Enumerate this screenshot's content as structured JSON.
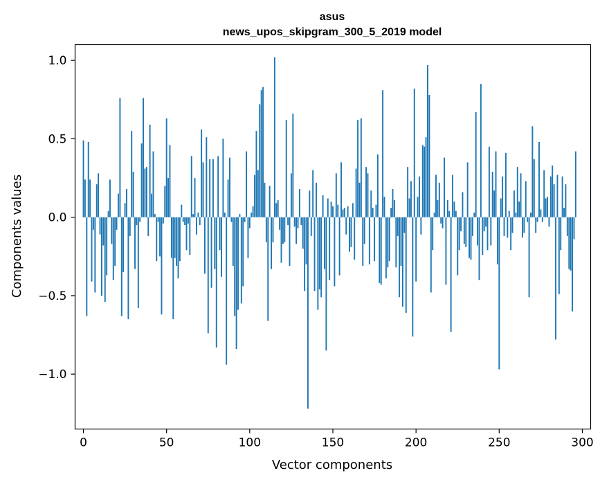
{
  "chart_data": {
    "type": "bar",
    "title": "asus",
    "subtitle": "news_upos_skipgram_300_5_2019 model",
    "xlabel": "Vector components",
    "ylabel": "Components values",
    "xlim": [
      -5,
      305
    ],
    "ylim": [
      -1.35,
      1.1
    ],
    "xticks": [
      0,
      50,
      100,
      150,
      200,
      250,
      300
    ],
    "xtick_labels": [
      "0",
      "50",
      "100",
      "150",
      "200",
      "250",
      "300"
    ],
    "yticks": [
      -1.0,
      -0.5,
      0.0,
      0.5,
      1.0
    ],
    "ytick_labels": [
      "−1.0",
      "−0.5",
      "0.0",
      "0.5",
      "1.0"
    ],
    "bar_color": "#1f77b4",
    "grid": false,
    "values": [
      0.49,
      0.24,
      -0.63,
      0.48,
      0.24,
      -0.41,
      -0.08,
      -0.48,
      0.21,
      0.28,
      -0.11,
      -0.5,
      -0.18,
      -0.54,
      -0.37,
      0.04,
      0.24,
      -0.17,
      -0.4,
      -0.31,
      -0.08,
      0.15,
      0.76,
      -0.63,
      -0.35,
      0.09,
      0.18,
      -0.65,
      -0.12,
      0.55,
      0.29,
      -0.33,
      -0.05,
      -0.58,
      -0.03,
      0.47,
      0.76,
      0.31,
      0.32,
      -0.12,
      0.59,
      0.15,
      0.42,
      0.02,
      -0.28,
      -0.03,
      -0.25,
      -0.62,
      -0.04,
      0.2,
      0.63,
      0.25,
      0.46,
      -0.26,
      -0.65,
      -0.26,
      -0.31,
      -0.39,
      -0.28,
      0.08,
      -0.03,
      -0.05,
      -0.21,
      -0.04,
      -0.24,
      0.39,
      0.02,
      0.25,
      -0.11,
      0.03,
      -0.05,
      0.56,
      0.35,
      -0.36,
      0.51,
      -0.74,
      0.37,
      -0.45,
      0.37,
      -0.33,
      -0.83,
      0.39,
      -0.21,
      -0.38,
      0.5,
      0.03,
      -0.94,
      0.24,
      0.38,
      -0.03,
      -0.31,
      -0.63,
      -0.84,
      -0.59,
      0.02,
      -0.55,
      -0.44,
      -0.03,
      0.42,
      -0.26,
      -0.07,
      0.03,
      0.07,
      0.27,
      0.55,
      0.3,
      0.72,
      0.81,
      0.83,
      0.22,
      -0.16,
      -0.66,
      0.2,
      -0.33,
      -0.16,
      1.02,
      0.09,
      0.11,
      -0.08,
      -0.29,
      -0.17,
      -0.16,
      0.62,
      -0.05,
      -0.31,
      0.28,
      0.66,
      -0.06,
      -0.17,
      -0.07,
      0.18,
      -0.05,
      -0.2,
      -0.47,
      -0.3,
      -1.22,
      0.17,
      -0.12,
      0.3,
      -0.47,
      0.22,
      -0.59,
      -0.46,
      -0.51,
      0.14,
      -0.33,
      -0.85,
      0.12,
      -0.4,
      0.1,
      0.07,
      -0.44,
      0.28,
      0.08,
      -0.37,
      0.35,
      0.05,
      0.06,
      -0.11,
      0.07,
      -0.22,
      -0.19,
      0.09,
      -0.27,
      0.31,
      0.62,
      0.22,
      0.63,
      -0.31,
      -0.17,
      0.32,
      0.28,
      -0.3,
      0.17,
      0.06,
      -0.28,
      0.08,
      0.4,
      -0.42,
      -0.43,
      0.81,
      0.13,
      -0.39,
      -0.32,
      -0.28,
      0.06,
      0.18,
      0.11,
      -0.32,
      -0.12,
      -0.51,
      -0.31,
      -0.57,
      -0.1,
      -0.61,
      0.32,
      0.12,
      0.23,
      -0.76,
      0.82,
      -0.41,
      0.13,
      0.26,
      -0.11,
      0.46,
      0.45,
      0.51,
      0.97,
      0.78,
      -0.48,
      -0.21,
      0.03,
      0.27,
      0.11,
      0.22,
      -0.04,
      -0.07,
      0.38,
      -0.43,
      0.11,
      0.04,
      -0.73,
      0.27,
      0.1,
      0.04,
      -0.37,
      -0.21,
      -0.09,
      0.16,
      -0.17,
      -0.19,
      0.35,
      -0.26,
      -0.27,
      -0.12,
      0.03,
      0.67,
      -0.18,
      -0.4,
      0.85,
      -0.24,
      -0.09,
      -0.06,
      -0.21,
      0.45,
      -0.18,
      0.29,
      0.17,
      0.42,
      -0.3,
      -0.97,
      0.12,
      0.26,
      -0.12,
      0.41,
      -0.13,
      0.04,
      -0.21,
      -0.1,
      0.17,
      0.03,
      0.32,
      0.1,
      0.28,
      -0.13,
      -0.1,
      0.23,
      -0.03,
      -0.51,
      0.03,
      0.58,
      0.37,
      -0.1,
      -0.03,
      0.48,
      0.05,
      -0.03,
      0.3,
      0.12,
      0.13,
      -0.06,
      0.26,
      0.33,
      0.21,
      -0.78,
      0.27,
      -0.49,
      -0.21,
      0.26,
      0.06,
      0.21,
      -0.12,
      -0.33,
      -0.34,
      -0.6,
      -0.14,
      0.42
    ]
  }
}
